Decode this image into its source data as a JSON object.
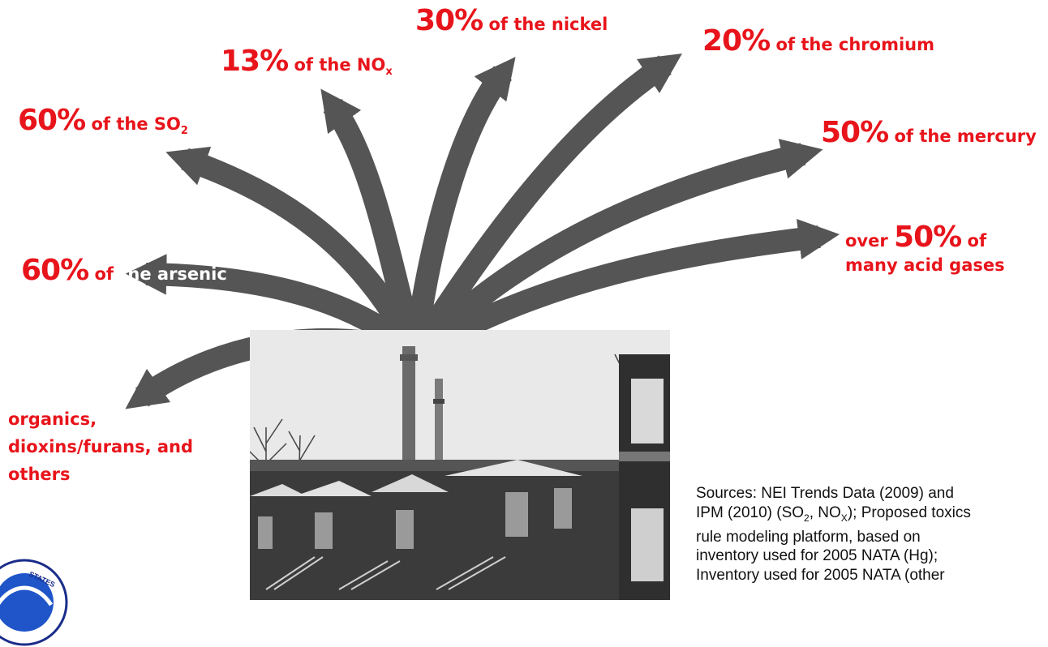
{
  "stats": [
    {
      "id": "so2",
      "pct": "60%",
      "text": " of the SO",
      "sub": "2"
    },
    {
      "id": "nox",
      "pct": "13%",
      "text": " of the NO",
      "sub": "x"
    },
    {
      "id": "nickel",
      "pct": "30%",
      "text": " of the nickel"
    },
    {
      "id": "chromium",
      "pct": "20%",
      "text": " of the chromium"
    },
    {
      "id": "mercury",
      "pct": "50%",
      "text": " of the mercury"
    },
    {
      "id": "acid",
      "prefix": "over ",
      "pct": "50%",
      "text": " of",
      "line2": "many acid gases"
    },
    {
      "id": "arsenic",
      "pct": "60%",
      "text_red": " of",
      "text_white": " the arsenic"
    },
    {
      "id": "organics",
      "lines": [
        "organics,",
        "dioxins/furans, and",
        "others"
      ]
    }
  ],
  "sources": {
    "line1": "Sources: NEI Trends Data (2009) and",
    "line2a": "IPM (2010) (SO",
    "line2b": "2",
    "line2c": ", NO",
    "line2d": "X",
    "line2e": "); Proposed toxics",
    "line3": "rule modeling platform, based on",
    "line4": "inventory used for 2005 NATA (Hg);",
    "line5": "Inventory used for 2005 NATA (other"
  },
  "seal": {
    "text": "STATES"
  },
  "colors": {
    "accent_red": "#e8141b",
    "arrow_gray": "#555555",
    "source_text": "#111111"
  },
  "icons": {
    "photo": "power-plant-stack-photo",
    "seal": "epa-seal-icon"
  }
}
